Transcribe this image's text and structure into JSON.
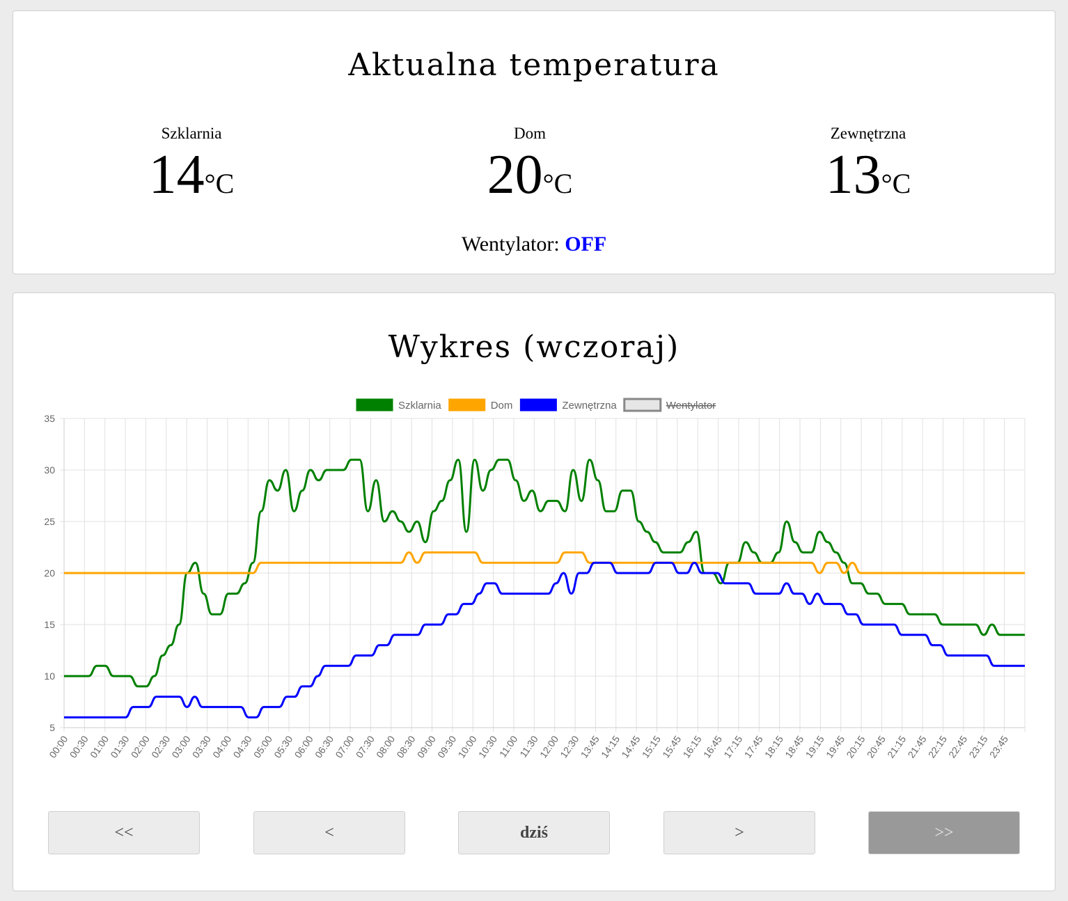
{
  "current": {
    "title": "Aktualna temperatura",
    "sensors": [
      {
        "label": "Szklarnia",
        "value": "14",
        "unit": "°C"
      },
      {
        "label": "Dom",
        "value": "20",
        "unit": "°C"
      },
      {
        "label": "Zewnętrzna",
        "value": "13",
        "unit": "°C"
      }
    ],
    "fan_label": "Wentylator:",
    "fan_state": "OFF",
    "fan_state_color": "#0000ff"
  },
  "chart_section": {
    "title": "Wykres (wczoraj)"
  },
  "nav": {
    "first": "<<",
    "prev": "<",
    "today": "dziś",
    "next": ">",
    "last": ">>"
  },
  "chart_data": {
    "type": "line",
    "x_ticks": [
      "00:00",
      "00:30",
      "01:00",
      "01:30",
      "02:00",
      "02:30",
      "03:00",
      "03:30",
      "04:00",
      "04:30",
      "05:00",
      "05:30",
      "06:00",
      "06:30",
      "07:00",
      "07:30",
      "08:00",
      "08:30",
      "09:00",
      "09:30",
      "10:00",
      "10:30",
      "11:00",
      "11:30",
      "12:00",
      "12:30",
      "13:45",
      "14:15",
      "14:45",
      "15:15",
      "15:45",
      "16:15",
      "16:45",
      "17:15",
      "17:45",
      "18:15",
      "18:45",
      "19:15",
      "19:45",
      "20:15",
      "20:45",
      "21:15",
      "21:45",
      "22:15",
      "22:45",
      "23:15",
      "23:45"
    ],
    "ylim": [
      5,
      35
    ],
    "y_ticks": [
      5,
      10,
      15,
      20,
      25,
      30,
      35
    ],
    "grid": true,
    "legend_position": "top",
    "series": [
      {
        "name": "Szklarnia",
        "color": "#008000",
        "values": [
          10,
          10,
          10,
          10,
          11,
          11,
          10,
          10,
          10,
          9,
          9,
          10,
          12,
          13,
          15,
          20,
          21,
          18,
          16,
          16,
          18,
          18,
          19,
          21,
          26,
          29,
          28,
          30,
          26,
          28,
          30,
          29,
          30,
          30,
          30,
          31,
          31,
          26,
          29,
          25,
          26,
          25,
          24,
          25,
          23,
          26,
          27,
          29,
          31,
          24,
          31,
          28,
          30,
          31,
          31,
          29,
          27,
          28,
          26,
          27,
          27,
          26,
          30,
          27,
          31,
          29,
          26,
          26,
          28,
          28,
          25,
          24,
          23,
          22,
          22,
          22,
          23,
          24,
          20,
          20,
          19,
          21,
          21,
          23,
          22,
          21,
          21,
          22,
          25,
          23,
          22,
          22,
          24,
          23,
          22,
          21,
          19,
          19,
          18,
          18,
          17,
          17,
          17,
          16,
          16,
          16,
          16,
          15,
          15,
          15,
          15,
          15,
          14,
          15,
          14,
          14,
          14,
          14
        ]
      },
      {
        "name": "Dom",
        "color": "#ffa500",
        "values": [
          20,
          20,
          20,
          20,
          20,
          20,
          20,
          20,
          20,
          20,
          20,
          20,
          20,
          20,
          20,
          20,
          20,
          20,
          20,
          20,
          20,
          20,
          20,
          20,
          21,
          21,
          21,
          21,
          21,
          21,
          21,
          21,
          21,
          21,
          21,
          21,
          21,
          21,
          21,
          21,
          21,
          21,
          22,
          21,
          22,
          22,
          22,
          22,
          22,
          22,
          22,
          21,
          21,
          21,
          21,
          21,
          21,
          21,
          21,
          21,
          21,
          22,
          22,
          22,
          21,
          21,
          21,
          21,
          21,
          21,
          21,
          21,
          21,
          21,
          21,
          21,
          21,
          21,
          21,
          21,
          21,
          21,
          21,
          21,
          21,
          21,
          21,
          21,
          21,
          21,
          21,
          21,
          20,
          21,
          21,
          20,
          21,
          20,
          20,
          20,
          20,
          20,
          20,
          20,
          20,
          20,
          20,
          20,
          20,
          20,
          20,
          20,
          20,
          20,
          20,
          20,
          20,
          20
        ]
      },
      {
        "name": "Zewnętrzna",
        "color": "#0000ff",
        "values": [
          6,
          6,
          6,
          6,
          6,
          6,
          6,
          6,
          6,
          7,
          7,
          7,
          8,
          8,
          8,
          8,
          7,
          8,
          7,
          7,
          7,
          7,
          7,
          7,
          6,
          6,
          7,
          7,
          7,
          8,
          8,
          9,
          9,
          10,
          11,
          11,
          11,
          11,
          12,
          12,
          12,
          13,
          13,
          14,
          14,
          14,
          14,
          15,
          15,
          15,
          16,
          16,
          17,
          17,
          18,
          19,
          19,
          18,
          18,
          18,
          18,
          18,
          18,
          18,
          19,
          20,
          18,
          20,
          20,
          21,
          21,
          21,
          20,
          20,
          20,
          20,
          20,
          21,
          21,
          21,
          20,
          20,
          21,
          20,
          20,
          20,
          19,
          19,
          19,
          19,
          18,
          18,
          18,
          18,
          19,
          18,
          18,
          17,
          18,
          17,
          17,
          17,
          16,
          16,
          15,
          15,
          15,
          15,
          15,
          14,
          14,
          14,
          14,
          13,
          13,
          12,
          12,
          12,
          12,
          12,
          12,
          11,
          11,
          11,
          11,
          11
        ]
      },
      {
        "name": "Wentylator",
        "color": "#888888",
        "hidden": true,
        "values": []
      }
    ]
  }
}
